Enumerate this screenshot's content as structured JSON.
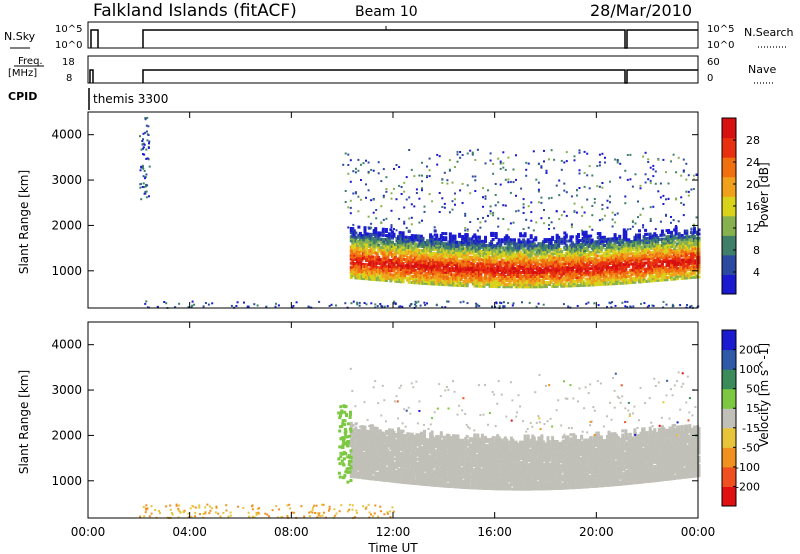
{
  "header": {
    "title": "Falkland Islands (fitACF)",
    "beam": "Beam 10",
    "date": "28/Mar/2010"
  },
  "strip_nsky": {
    "left_label": "N.Sky",
    "left_ticks": [
      "10^5",
      "10^0"
    ],
    "right_ticks": [
      "10^5",
      "10^0"
    ],
    "right_label": "N.Search"
  },
  "strip_freq": {
    "left_label_line1": "Freq.",
    "left_label_line2": "[MHz]",
    "left_ticks": [
      "18",
      "8"
    ],
    "right_ticks": [
      "60",
      "0"
    ],
    "right_label": "Nave"
  },
  "cpid": {
    "label": "CPID",
    "mode": "themis 3300"
  },
  "x_axis": {
    "label": "Time UT",
    "ticks": [
      "00:00",
      "04:00",
      "08:00",
      "12:00",
      "16:00",
      "20:00",
      "00:00"
    ]
  },
  "colors": {
    "power_scale": [
      "#1a1ad0",
      "#2b4aa0",
      "#3f7f6a",
      "#86b14e",
      "#d8d21a",
      "#f0a01a",
      "#f07010",
      "#e83010",
      "#d81010"
    ],
    "velocity_scale": [
      "#1a1ad0",
      "#2e5aa8",
      "#3a8a5a",
      "#7cc840",
      "#c0c0b8",
      "#e8c43a",
      "#f09020",
      "#f05020",
      "#e01010"
    ],
    "ground_scatter": "#c0c0b8"
  },
  "chart_data": [
    {
      "type": "heatmap",
      "name": "power",
      "ylabel": "Slant Range [km]",
      "xlabel": "Time UT",
      "xlim": [
        "00:00",
        "24:00"
      ],
      "ylim": [
        180,
        4500
      ],
      "y_ticks": [
        "1000",
        "2000",
        "3000",
        "4000"
      ],
      "colorbar": {
        "label": "Power [dB]",
        "ticks": [
          "4",
          "8",
          "12",
          "16",
          "20",
          "24",
          "28"
        ],
        "range": [
          0,
          30
        ]
      },
      "regions": [
        {
          "t_start": 10.3,
          "t_end": 24.0,
          "range_km": [
            900,
            2200
          ],
          "peak_db": 28,
          "description_level": "strong band"
        },
        {
          "t_start": 10.0,
          "t_end": 24.0,
          "range_km": [
            1900,
            3700
          ],
          "peak_db": 12,
          "description_level": "patchy"
        },
        {
          "t_start": 2.0,
          "t_end": 2.4,
          "range_km": [
            2600,
            4400
          ],
          "peak_db": 10,
          "description_level": "patchy"
        }
      ]
    },
    {
      "type": "heatmap",
      "name": "velocity",
      "ylabel": "Slant Range [km]",
      "xlabel": "Time UT",
      "xlim": [
        "00:00",
        "24:00"
      ],
      "ylim": [
        180,
        4500
      ],
      "y_ticks": [
        "1000",
        "2000",
        "3000",
        "4000"
      ],
      "colorbar": {
        "label": "Velocity [m s^-1]",
        "ticks": [
          "200",
          "100",
          "50",
          "15",
          "-15",
          "-50",
          "-100",
          "-200"
        ],
        "range": [
          -250,
          250
        ]
      },
      "regions": [
        {
          "t_start": 10.3,
          "t_end": 24.0,
          "range_km": [
            800,
            2200
          ],
          "velocity_ms": 0,
          "description_level": "ground scatter"
        },
        {
          "t_start": 9.8,
          "t_end": 10.3,
          "range_km": [
            1000,
            2700
          ],
          "velocity_ms": 40,
          "description_level": "positive"
        },
        {
          "t_start": 2.0,
          "t_end": 12.0,
          "range_km": [
            200,
            500
          ],
          "velocity_ms": -40,
          "description_level": "negative"
        }
      ]
    }
  ]
}
